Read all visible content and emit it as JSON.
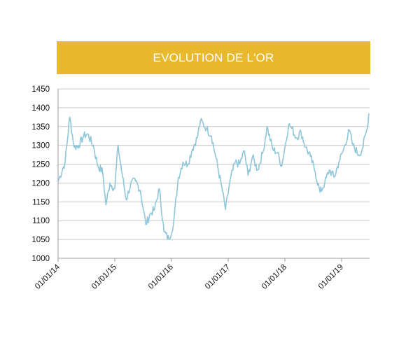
{
  "chart_data": {
    "type": "line",
    "title": "EVOLUTION DE L'OR",
    "xlabel": "",
    "ylabel": "",
    "ylim": [
      1000,
      1450
    ],
    "yticks": [
      1000,
      1050,
      1100,
      1150,
      1200,
      1250,
      1300,
      1350,
      1400,
      1450
    ],
    "xticks": [
      "01/01/14",
      "01/01/15",
      "01/01/16",
      "01/01/17",
      "01/01/18",
      "01/01/19"
    ],
    "grid": "horizontal",
    "x_unit": "date",
    "x": [
      "2014-01-01",
      "2014-02-15",
      "2014-03-17",
      "2014-04-15",
      "2014-05-15",
      "2014-06-15",
      "2014-07-10",
      "2014-08-15",
      "2014-09-15",
      "2014-10-15",
      "2014-11-05",
      "2014-12-01",
      "2015-01-01",
      "2015-01-22",
      "2015-02-15",
      "2015-03-17",
      "2015-04-15",
      "2015-05-15",
      "2015-06-15",
      "2015-07-20",
      "2015-08-20",
      "2015-09-15",
      "2015-10-15",
      "2015-11-15",
      "2015-12-17",
      "2016-01-15",
      "2016-02-15",
      "2016-03-15",
      "2016-04-15",
      "2016-05-15",
      "2016-06-15",
      "2016-07-06",
      "2016-08-15",
      "2016-09-15",
      "2016-10-15",
      "2016-11-15",
      "2016-12-15",
      "2017-01-15",
      "2017-02-15",
      "2017-03-15",
      "2017-04-15",
      "2017-05-09",
      "2017-06-06",
      "2017-07-10",
      "2017-08-15",
      "2017-09-08",
      "2017-10-15",
      "2017-11-15",
      "2017-12-12",
      "2018-01-25",
      "2018-02-15",
      "2018-03-15",
      "2018-04-15",
      "2018-05-15",
      "2018-06-15",
      "2018-07-15",
      "2018-08-16",
      "2018-09-15",
      "2018-10-15",
      "2018-11-15",
      "2018-12-15",
      "2019-01-15",
      "2019-02-20",
      "2019-03-15",
      "2019-04-23",
      "2019-05-15",
      "2019-06-15",
      "2019-06-26"
    ],
    "values": [
      1204,
      1255,
      1375,
      1295,
      1300,
      1325,
      1330,
      1300,
      1245,
      1230,
      1142,
      1200,
      1185,
      1300,
      1230,
      1155,
      1200,
      1205,
      1180,
      1090,
      1120,
      1130,
      1185,
      1070,
      1050,
      1095,
      1215,
      1255,
      1250,
      1290,
      1320,
      1365,
      1345,
      1325,
      1265,
      1200,
      1130,
      1210,
      1255,
      1250,
      1285,
      1220,
      1270,
      1235,
      1285,
      1350,
      1290,
      1280,
      1245,
      1355,
      1345,
      1320,
      1335,
      1295,
      1270,
      1230,
      1175,
      1200,
      1235,
      1215,
      1255,
      1290,
      1340,
      1300,
      1275,
      1290,
      1345,
      1385
    ],
    "line_color": "#8ec6da",
    "banner_color": "#e8b92c",
    "grid_color": "#c8c8c8"
  }
}
